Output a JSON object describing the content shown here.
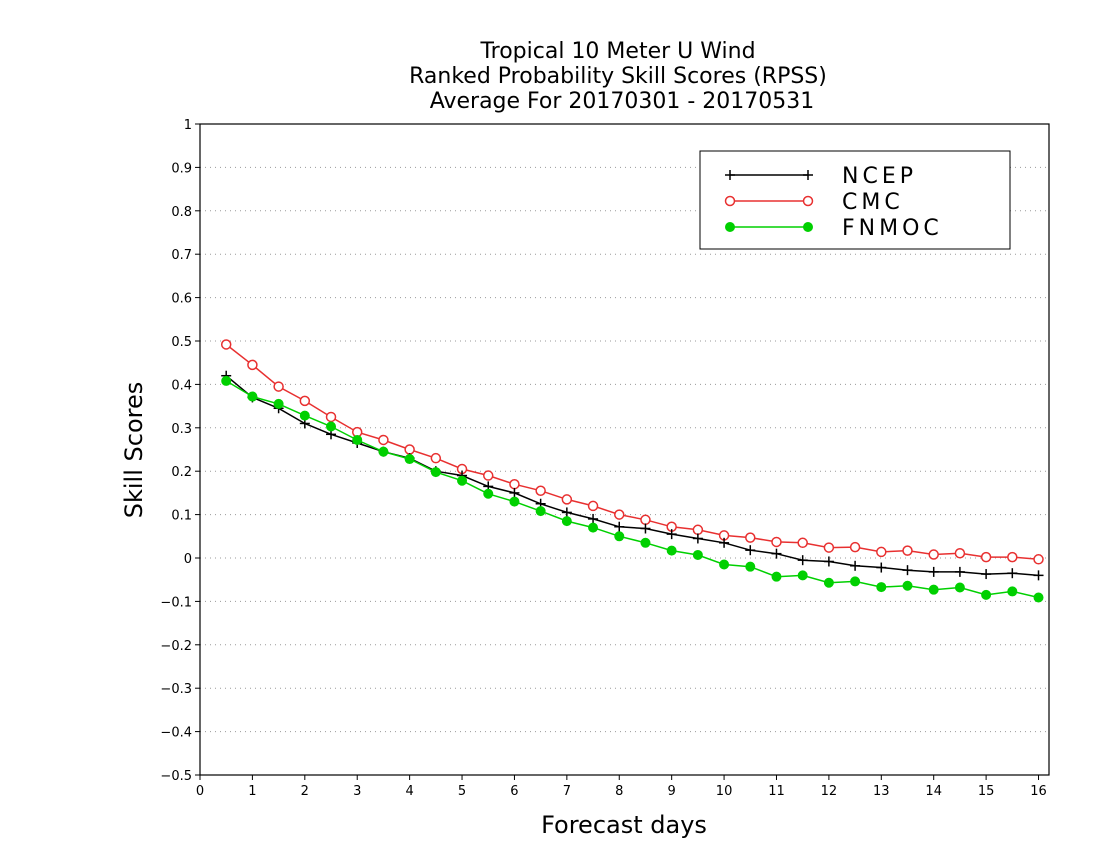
{
  "chart_data": {
    "type": "line",
    "title_lines": [
      "Tropical 10 Meter U Wind",
      "Ranked Probability Skill Scores (RPSS)",
      "Average For 20170301 - 20170531"
    ],
    "xlabel": "Forecast days",
    "ylabel": "Skill Scores",
    "xlim": [
      0,
      16.2
    ],
    "ylim": [
      -0.5,
      1
    ],
    "x_ticks": [
      0,
      1,
      2,
      3,
      4,
      5,
      6,
      7,
      8,
      9,
      10,
      11,
      12,
      13,
      14,
      15,
      16
    ],
    "y_ticks": [
      -0.5,
      -0.4,
      -0.3,
      -0.2,
      -0.1,
      0,
      0.1,
      0.2,
      0.3,
      0.4,
      0.5,
      0.6,
      0.7,
      0.8,
      0.9,
      1
    ],
    "y_tick_labels": [
      "−0.5",
      "−0.4",
      "−0.3",
      "−0.2",
      "−0.1",
      "0",
      "0.1",
      "0.2",
      "0.3",
      "0.4",
      "0.5",
      "0.6",
      "0.7",
      "0.8",
      "0.9",
      "1"
    ],
    "grid": "horizontal dotted",
    "legend_position": "top-right",
    "x": [
      0.5,
      1,
      1.5,
      2,
      2.5,
      3,
      3.5,
      4,
      4.5,
      5,
      5.5,
      6,
      6.5,
      7,
      7.5,
      8,
      8.5,
      9,
      9.5,
      10,
      10.5,
      11,
      11.5,
      12,
      12.5,
      13,
      13.5,
      14,
      14.5,
      15,
      15.5,
      16
    ],
    "series": [
      {
        "name": "NCEP",
        "color": "#000000",
        "marker": "plus",
        "values": [
          0.42,
          0.37,
          0.345,
          0.31,
          0.285,
          0.265,
          0.245,
          0.23,
          0.2,
          0.19,
          0.165,
          0.15,
          0.125,
          0.105,
          0.09,
          0.072,
          0.068,
          0.055,
          0.045,
          0.035,
          0.018,
          0.01,
          -0.005,
          -0.008,
          -0.018,
          -0.022,
          -0.028,
          -0.032,
          -0.032,
          -0.037,
          -0.035,
          -0.04
        ]
      },
      {
        "name": "CMC",
        "color": "#e83030",
        "marker": "open-circle",
        "values": [
          0.492,
          0.445,
          0.395,
          0.362,
          0.325,
          0.29,
          0.272,
          0.25,
          0.23,
          0.205,
          0.19,
          0.17,
          0.155,
          0.135,
          0.12,
          0.1,
          0.088,
          0.072,
          0.065,
          0.052,
          0.047,
          0.037,
          0.035,
          0.024,
          0.025,
          0.014,
          0.017,
          0.008,
          0.011,
          0.002,
          0.002,
          -0.003
        ]
      },
      {
        "name": "FNMOC",
        "color": "#00d000",
        "marker": "filled-circle",
        "values": [
          0.408,
          0.372,
          0.355,
          0.328,
          0.303,
          0.272,
          0.245,
          0.228,
          0.198,
          0.178,
          0.148,
          0.13,
          0.108,
          0.085,
          0.07,
          0.05,
          0.035,
          0.017,
          0.007,
          -0.015,
          -0.02,
          -0.043,
          -0.04,
          -0.057,
          -0.054,
          -0.067,
          -0.064,
          -0.073,
          -0.068,
          -0.085,
          -0.077,
          -0.091
        ]
      }
    ]
  }
}
